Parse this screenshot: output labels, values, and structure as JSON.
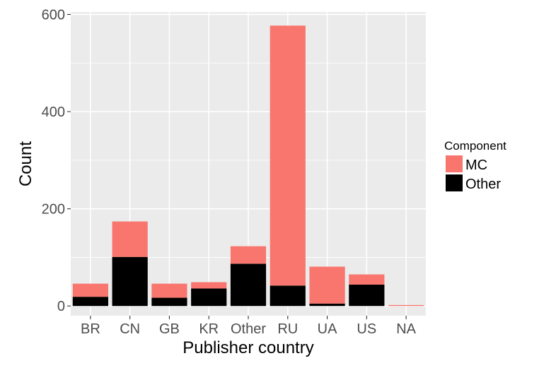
{
  "chart_data": {
    "type": "bar",
    "stacked": true,
    "categories": [
      "BR",
      "CN",
      "GB",
      "KR",
      "Other",
      "RU",
      "UA",
      "US",
      "NA"
    ],
    "series": [
      {
        "name": "MC",
        "values": [
          27,
          73,
          29,
          13,
          36,
          535,
          76,
          21,
          2
        ],
        "color": "#F8766D"
      },
      {
        "name": "Other",
        "values": [
          19,
          101,
          17,
          36,
          87,
          42,
          5,
          44,
          0
        ],
        "color": "#000000"
      }
    ],
    "xlabel": "Publisher country",
    "ylabel": "Count",
    "ylim": [
      -20,
      605
    ],
    "yticks": [
      0,
      200,
      400,
      600
    ],
    "grid": true,
    "legend": {
      "title": "Component",
      "position": "right",
      "entries": [
        "MC",
        "Other"
      ]
    }
  }
}
